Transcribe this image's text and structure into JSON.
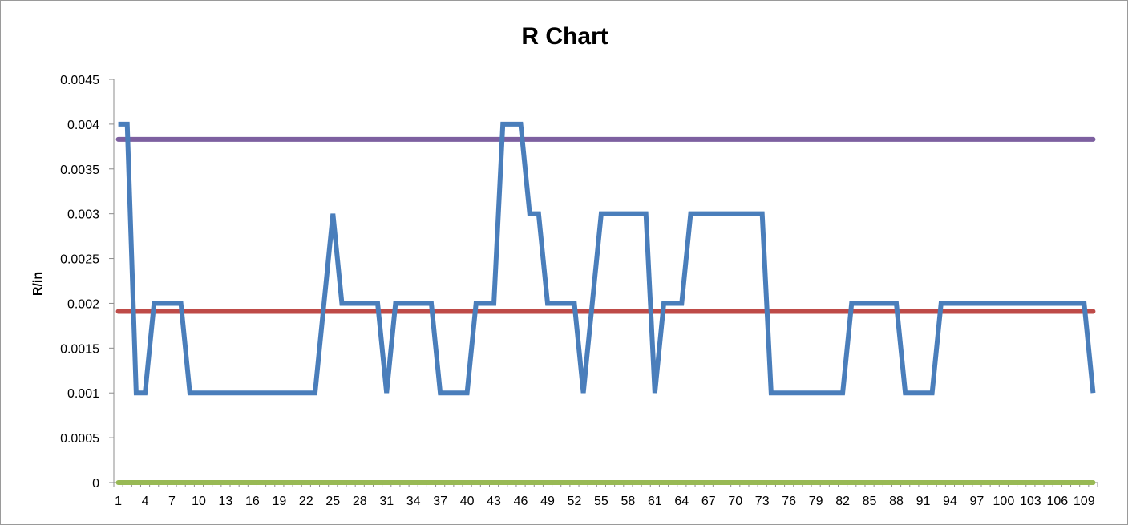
{
  "chart_data": {
    "type": "line",
    "title": "R Chart",
    "xlabel": "",
    "ylabel": "R/in",
    "ylim": [
      0,
      0.0045
    ],
    "yticks": [
      "0",
      "0.0005",
      "0.001",
      "0.0015",
      "0.002",
      "0.0025",
      "0.003",
      "0.0035",
      "0.004",
      "0.0045"
    ],
    "x": [
      1,
      2,
      3,
      4,
      5,
      6,
      7,
      8,
      9,
      10,
      11,
      12,
      13,
      14,
      15,
      16,
      17,
      18,
      19,
      20,
      21,
      22,
      23,
      24,
      25,
      26,
      27,
      28,
      29,
      30,
      31,
      32,
      33,
      34,
      35,
      36,
      37,
      38,
      39,
      40,
      41,
      42,
      43,
      44,
      45,
      46,
      47,
      48,
      49,
      50,
      51,
      52,
      53,
      54,
      55,
      56,
      57,
      58,
      59,
      60,
      61,
      62,
      63,
      64,
      65,
      66,
      67,
      68,
      69,
      70,
      71,
      72,
      73,
      74,
      75,
      76,
      77,
      78,
      79,
      80,
      81,
      82,
      83,
      84,
      85,
      86,
      87,
      88,
      89,
      90,
      91,
      92,
      93,
      94,
      95,
      96,
      97,
      98,
      99,
      100,
      101,
      102,
      103,
      104,
      105,
      106,
      107,
      108,
      109,
      110
    ],
    "xtick_labels": [
      "1",
      "4",
      "7",
      "10",
      "13",
      "16",
      "19",
      "22",
      "25",
      "28",
      "31",
      "34",
      "37",
      "40",
      "43",
      "46",
      "49",
      "52",
      "55",
      "58",
      "61",
      "64",
      "67",
      "70",
      "73",
      "76",
      "79",
      "82",
      "85",
      "88",
      "91",
      "94",
      "97",
      "100",
      "103",
      "106",
      "109"
    ],
    "grid": false,
    "legend": "none",
    "series": [
      {
        "color": "#4a7ebb",
        "values": [
          0.004,
          0.004,
          0.001,
          0.001,
          0.002,
          0.002,
          0.002,
          0.002,
          0.001,
          0.001,
          0.001,
          0.001,
          0.001,
          0.001,
          0.001,
          0.001,
          0.001,
          0.001,
          0.001,
          0.001,
          0.001,
          0.001,
          0.001,
          0.002,
          0.003,
          0.002,
          0.002,
          0.002,
          0.002,
          0.002,
          0.001,
          0.002,
          0.002,
          0.002,
          0.002,
          0.002,
          0.001,
          0.001,
          0.001,
          0.001,
          0.002,
          0.002,
          0.002,
          0.004,
          0.004,
          0.004,
          0.003,
          0.003,
          0.002,
          0.002,
          0.002,
          0.002,
          0.001,
          0.002,
          0.003,
          0.003,
          0.003,
          0.003,
          0.003,
          0.003,
          0.001,
          0.002,
          0.002,
          0.002,
          0.003,
          0.003,
          0.003,
          0.003,
          0.003,
          0.003,
          0.003,
          0.003,
          0.003,
          0.001,
          0.001,
          0.001,
          0.001,
          0.001,
          0.001,
          0.001,
          0.001,
          0.001,
          0.002,
          0.002,
          0.002,
          0.002,
          0.002,
          0.002,
          0.001,
          0.001,
          0.001,
          0.001,
          0.002,
          0.002,
          0.002,
          0.002,
          0.002,
          0.002,
          0.002,
          0.002,
          0.002,
          0.002,
          0.002,
          0.002,
          0.002,
          0.002,
          0.002,
          0.002,
          0.002,
          0.001
        ]
      },
      {
        "color": "#be4b48",
        "constant": 0.00191
      },
      {
        "color": "#7d60a0",
        "constant": 0.00383
      },
      {
        "color": "#98b954",
        "constant": 0
      }
    ]
  }
}
